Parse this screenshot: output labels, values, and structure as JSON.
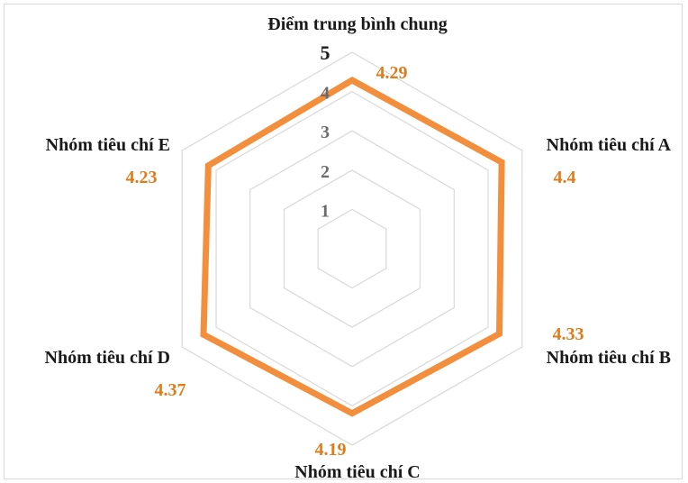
{
  "chart_data": {
    "type": "radar",
    "title": "",
    "categories": [
      "Điểm trung bình chung",
      "Nhóm tiêu chí A",
      "Nhóm tiêu chí B",
      "Nhóm tiêu chí C",
      "Nhóm tiêu chí D",
      "Nhóm tiêu chí E"
    ],
    "series": [
      {
        "values": [
          4.29,
          4.4,
          4.33,
          4.19,
          4.37,
          4.23
        ],
        "color": "#f28e3c",
        "label_color": "#e07b1a"
      }
    ],
    "value_labels": [
      "4.29",
      "4.4",
      "4.33",
      "4.19",
      "4.37",
      "4.23"
    ],
    "range": [
      0,
      5
    ],
    "ticks": [
      1,
      2,
      3,
      4,
      5
    ],
    "tick_labels": [
      "1",
      "2",
      "3",
      "4",
      "5"
    ],
    "grid": true,
    "grid_color": "#d9d9d9",
    "legend": "none"
  }
}
